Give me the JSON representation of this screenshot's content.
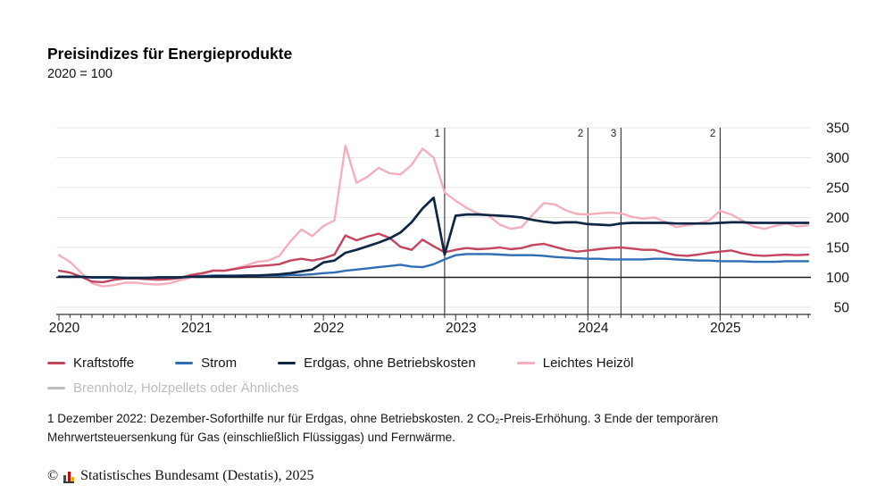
{
  "header": {
    "title": "Preisindizes für Energieprodukte",
    "subtitle": "2020 = 100"
  },
  "chart_data": {
    "type": "line",
    "title": "Preisindizes für Energieprodukte",
    "subtitle": "2020 = 100",
    "x_unit": "month",
    "x_start": "2020-01",
    "x_end": "2025-09",
    "year_tick_labels": [
      "2020",
      "2021",
      "2022",
      "2023",
      "2024",
      "2025"
    ],
    "y_ticks": [
      50,
      100,
      150,
      200,
      250,
      300,
      350
    ],
    "ylim": [
      50,
      350
    ],
    "baseline_value": 100,
    "grid": true,
    "grid_color": "#e6e6e6",
    "baseline_color": "#1a1a1a",
    "axis_color": "#333333",
    "legend_position": "bottom",
    "series": [
      {
        "name": "Kraftstoffe",
        "color": "#c5445e",
        "values": [
          111,
          108,
          101,
          93,
          92,
          96,
          98,
          98,
          97,
          96,
          97,
          99,
          104,
          107,
          111,
          111,
          114,
          117,
          119,
          120,
          122,
          128,
          131,
          128,
          132,
          138,
          170,
          162,
          168,
          173,
          166,
          151,
          146,
          163,
          152,
          142,
          146,
          149,
          147,
          148,
          150,
          147,
          149,
          154,
          156,
          151,
          146,
          143,
          145,
          147,
          149,
          150,
          148,
          146,
          146,
          141,
          137,
          136,
          138,
          141,
          143,
          145,
          140,
          137,
          136,
          137,
          138,
          137,
          138
        ]
      },
      {
        "name": "Strom",
        "color": "#2e6fb4",
        "values": [
          101,
          101,
          101,
          100,
          100,
          100,
          99,
          99,
          99,
          100,
          100,
          100,
          102,
          102,
          103,
          103,
          103,
          103,
          103,
          103,
          103,
          104,
          104,
          105,
          107,
          108,
          111,
          113,
          115,
          117,
          119,
          121,
          118,
          117,
          122,
          130,
          137,
          139,
          139,
          139,
          138,
          137,
          137,
          137,
          136,
          134,
          133,
          132,
          131,
          131,
          130,
          130,
          130,
          130,
          131,
          131,
          130,
          129,
          128,
          128,
          127,
          127,
          127,
          126,
          126,
          126,
          127,
          127,
          127
        ]
      },
      {
        "name": "Erdgas, ohne Betriebskosten",
        "color": "#0f2747",
        "values": [
          101,
          101,
          101,
          100,
          100,
          100,
          99,
          99,
          99,
          100,
          100,
          100,
          101,
          101,
          102,
          102,
          102,
          103,
          103,
          104,
          105,
          107,
          110,
          113,
          125,
          128,
          141,
          146,
          152,
          158,
          165,
          175,
          192,
          215,
          233,
          138,
          203,
          205,
          205,
          204,
          203,
          202,
          200,
          196,
          193,
          191,
          192,
          192,
          189,
          188,
          187,
          190,
          191,
          191,
          191,
          191,
          190,
          190,
          190,
          190,
          191,
          192,
          192,
          191,
          191,
          191,
          191,
          191,
          191
        ]
      },
      {
        "name": "Leichtes Heizöl",
        "color": "#f5aebc",
        "values": [
          137,
          126,
          108,
          90,
          85,
          87,
          91,
          91,
          89,
          88,
          90,
          95,
          100,
          105,
          112,
          111,
          115,
          120,
          126,
          128,
          136,
          160,
          180,
          169,
          186,
          195,
          320,
          258,
          268,
          283,
          274,
          272,
          288,
          315,
          300,
          242,
          228,
          216,
          207,
          203,
          188,
          181,
          184,
          205,
          224,
          222,
          212,
          206,
          205,
          207,
          208,
          207,
          201,
          198,
          200,
          193,
          184,
          187,
          190,
          195,
          211,
          205,
          195,
          185,
          181,
          186,
          190,
          185,
          187
        ]
      }
    ],
    "hidden_series": [
      {
        "name": "Brennholz, Holzpellets oder Ähnliches",
        "color": "#bcbcbc",
        "hidden": true
      }
    ],
    "annotations": [
      {
        "label": "1",
        "month": "2022-12",
        "month_index": 35
      },
      {
        "label": "2",
        "month": "2024-01",
        "month_index": 48
      },
      {
        "label": "3",
        "month": "2024-04",
        "month_index": 51
      },
      {
        "label": "2",
        "month": "2025-01",
        "month_index": 60
      }
    ]
  },
  "legend": {
    "items": [
      {
        "label": "Kraftstoffe",
        "color": "#c5445e",
        "muted": false
      },
      {
        "label": "Strom",
        "color": "#2e6fb4",
        "muted": false
      },
      {
        "label": "Erdgas, ohne Betriebskosten",
        "color": "#0f2747",
        "muted": false
      },
      {
        "label": "Leichtes Heizöl",
        "color": "#f5aebc",
        "muted": false
      },
      {
        "label": "Brennholz, Holzpellets oder Ähnliches",
        "color": "#bcbcbc",
        "muted": true
      }
    ]
  },
  "footnotes": {
    "text": "1 Dezember 2022: Dezember-Soforthilfe nur für Erdgas, ohne Betriebskosten. 2 CO₂-Preis-Erhöhung. 3 Ende der temporären Mehrwertsteuersenkung für Gas (einschließlich Flüssiggas) und Fernwärme."
  },
  "footer": {
    "copyright_symbol": "©",
    "copyright": "Statistisches Bundesamt (Destatis), 2025",
    "logo_icon": "destatis-bar-chart-logo"
  }
}
